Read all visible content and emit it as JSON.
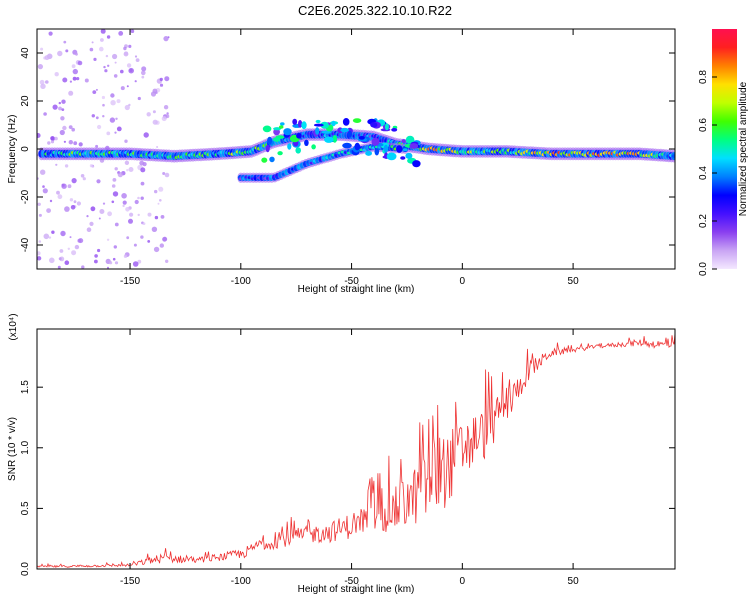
{
  "title": "C2E6.2025.322.10.10.R22",
  "chart_data": [
    {
      "type": "heatmap",
      "xlabel": "Height of straight line (km)",
      "ylabel": "Frequency (Hz)",
      "xlim": [
        -192,
        96
      ],
      "ylim": [
        -50,
        50
      ],
      "xticks": [
        -150,
        -100,
        -50,
        0,
        50
      ],
      "yticks": [
        -40,
        -20,
        0,
        20,
        40
      ],
      "colorbar": {
        "label": "Normalized spectral amplitude",
        "range": [
          0.0,
          1.0
        ],
        "ticks": [
          0.0,
          0.2,
          0.4,
          0.6,
          0.8
        ],
        "colors": [
          "#f4e8ff",
          "#c9a4f4",
          "#8a3ff0",
          "#4410ff",
          "#0000ff",
          "#0080ff",
          "#00e0ff",
          "#00ff80",
          "#40ff00",
          "#c0ff00",
          "#ffe000",
          "#ff8000",
          "#ff2020",
          "#ff1050"
        ]
      },
      "ridge": {
        "main_band": [
          {
            "x": -190,
            "f": -2,
            "v": 0.45
          },
          {
            "x": -170,
            "f": -2,
            "v": 0.55
          },
          {
            "x": -150,
            "f": -2,
            "v": 0.5
          },
          {
            "x": -130,
            "f": -3,
            "v": 0.5
          },
          {
            "x": -110,
            "f": -2,
            "v": 0.55
          },
          {
            "x": -95,
            "f": -1,
            "v": 0.6
          },
          {
            "x": -85,
            "f": 3,
            "v": 0.45
          },
          {
            "x": -70,
            "f": 6,
            "v": 0.35
          },
          {
            "x": -55,
            "f": 6,
            "v": 0.3
          },
          {
            "x": -40,
            "f": 5,
            "v": 0.3
          },
          {
            "x": -30,
            "f": 2,
            "v": 0.45
          },
          {
            "x": -15,
            "f": 0,
            "v": 0.85
          },
          {
            "x": 0,
            "f": -1,
            "v": 0.6
          },
          {
            "x": 20,
            "f": -1,
            "v": 0.55
          },
          {
            "x": 40,
            "f": -2,
            "v": 0.75
          },
          {
            "x": 60,
            "f": -2,
            "v": 0.8
          },
          {
            "x": 80,
            "f": -2,
            "v": 0.7
          },
          {
            "x": 96,
            "f": -3,
            "v": 0.45
          }
        ],
        "lower_branch": [
          {
            "x": -100,
            "f": -12,
            "v": 0.3
          },
          {
            "x": -85,
            "f": -12,
            "v": 0.3
          },
          {
            "x": -70,
            "f": -6,
            "v": 0.35
          },
          {
            "x": -55,
            "f": -2,
            "v": 0.4
          },
          {
            "x": -40,
            "f": 1,
            "v": 0.45
          },
          {
            "x": -25,
            "f": 0,
            "v": 0.5
          }
        ]
      }
    },
    {
      "type": "line",
      "xlabel": "Height of straight line (km)",
      "ylabel": "SNR (10 * v/v)",
      "y_scale_label": "(x10⁴)",
      "xlim": [
        -192,
        96
      ],
      "ylim": [
        0,
        1.98
      ],
      "xticks": [
        -150,
        -100,
        -50,
        0,
        50
      ],
      "yticks": [
        0.0,
        0.5,
        1.0,
        1.5
      ],
      "series": [
        {
          "color": "#ee3333",
          "envelope": [
            {
              "x": -192,
              "base": 0.01,
              "amp": 0.03
            },
            {
              "x": -150,
              "base": 0.02,
              "amp": 0.04
            },
            {
              "x": -135,
              "base": 0.05,
              "amp": 0.15
            },
            {
              "x": -120,
              "base": 0.05,
              "amp": 0.08
            },
            {
              "x": -100,
              "base": 0.08,
              "amp": 0.15
            },
            {
              "x": -90,
              "base": 0.15,
              "amp": 0.2
            },
            {
              "x": -75,
              "base": 0.2,
              "amp": 0.25
            },
            {
              "x": -60,
              "base": 0.22,
              "amp": 0.3
            },
            {
              "x": -50,
              "base": 0.25,
              "amp": 0.4
            },
            {
              "x": -40,
              "base": 0.3,
              "amp": 0.5
            },
            {
              "x": -30,
              "base": 0.3,
              "amp": 0.7
            },
            {
              "x": -20,
              "base": 0.35,
              "amp": 0.95
            },
            {
              "x": -10,
              "base": 0.45,
              "amp": 1.15
            },
            {
              "x": 0,
              "base": 0.7,
              "amp": 1.0
            },
            {
              "x": 10,
              "base": 0.9,
              "amp": 0.8
            },
            {
              "x": 20,
              "base": 1.2,
              "amp": 0.5
            },
            {
              "x": 30,
              "base": 1.55,
              "amp": 0.3
            },
            {
              "x": 40,
              "base": 1.75,
              "amp": 0.12
            },
            {
              "x": 60,
              "base": 1.82,
              "amp": 0.05
            },
            {
              "x": 80,
              "base": 1.84,
              "amp": 0.1
            },
            {
              "x": 96,
              "base": 1.8,
              "amp": 0.15
            }
          ]
        }
      ]
    }
  ]
}
